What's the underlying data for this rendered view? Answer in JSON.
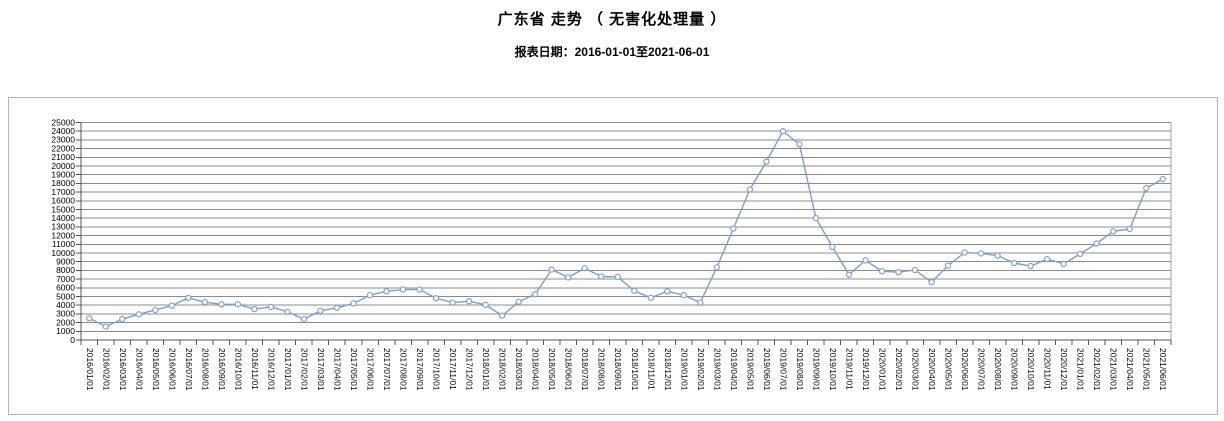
{
  "header": {
    "title": "广东省 走势 （ 无害化处理量 ）",
    "subtitle": "报表日期：2016-01-01至2021-06-01"
  },
  "chart_data": {
    "type": "line",
    "title": "广东省 走势 （ 无害化处理量 ）",
    "subtitle": "报表日期：2016-01-01至2021-06-01",
    "xlabel": "",
    "ylabel": "",
    "legend": "none",
    "grid": "horizontal",
    "x_label_rotation": "vertical",
    "ylim": [
      0,
      25000
    ],
    "ytick_step": 1000,
    "yticks": [
      0,
      1000,
      2000,
      3000,
      4000,
      5000,
      6000,
      7000,
      8000,
      9000,
      10000,
      11000,
      12000,
      13000,
      14000,
      15000,
      16000,
      17000,
      18000,
      19000,
      20000,
      21000,
      22000,
      23000,
      24000,
      25000
    ],
    "x": [
      "2016/01/01",
      "2016/02/01",
      "2016/03/01",
      "2016/04/01",
      "2016/05/01",
      "2016/06/01",
      "2016/07/01",
      "2016/08/01",
      "2016/09/01",
      "2016/10/01",
      "2016/11/01",
      "2016/12/01",
      "2017/01/01",
      "2017/02/01",
      "2017/03/01",
      "2017/04/01",
      "2017/05/01",
      "2017/06/01",
      "2017/07/01",
      "2017/08/01",
      "2017/09/01",
      "2017/10/01",
      "2017/11/01",
      "2017/12/01",
      "2018/01/01",
      "2018/02/01",
      "2018/03/01",
      "2018/04/01",
      "2018/05/01",
      "2018/06/01",
      "2018/07/01",
      "2018/08/01",
      "2018/09/01",
      "2018/10/01",
      "2018/11/01",
      "2018/12/01",
      "2019/01/01",
      "2019/02/01",
      "2019/03/01",
      "2019/04/01",
      "2019/05/01",
      "2019/06/01",
      "2019/07/01",
      "2019/08/01",
      "2019/09/01",
      "2019/10/01",
      "2019/11/01",
      "2019/12/01",
      "2020/01/01",
      "2020/02/01",
      "2020/03/01",
      "2020/04/01",
      "2020/05/01",
      "2020/06/01",
      "2020/07/01",
      "2020/08/01",
      "2020/09/01",
      "2020/10/01",
      "2020/11/01",
      "2020/12/01",
      "2021/01/01",
      "2021/02/01",
      "2021/03/01",
      "2021/04/01",
      "2021/05/01",
      "2021/06/01"
    ],
    "series": [
      {
        "name": "无害化处理量",
        "values": [
          2500,
          1550,
          2400,
          2950,
          3450,
          3950,
          4850,
          4350,
          4100,
          4100,
          3550,
          3800,
          3250,
          2400,
          3350,
          3700,
          4200,
          5150,
          5600,
          5800,
          5800,
          4800,
          4300,
          4450,
          4050,
          2800,
          4400,
          5250,
          8100,
          7200,
          8250,
          7300,
          7250,
          5650,
          4850,
          5600,
          5150,
          4300,
          8350,
          12800,
          17300,
          20500,
          24000,
          22500,
          14000,
          10700,
          7500,
          9150,
          7900,
          7800,
          8050,
          6650,
          8550,
          10050,
          9950,
          9700,
          8850,
          8500,
          9300,
          8750,
          9900,
          11100,
          12500,
          12750,
          17450,
          18500
        ]
      }
    ],
    "colors": {
      "line": "#7d9ec7",
      "marker_fill": "#f4f8fc",
      "gridline": "#8c8c8c",
      "axis": "#545454",
      "tick_label": "#000000",
      "plot_border": "#a6a6a6"
    }
  }
}
